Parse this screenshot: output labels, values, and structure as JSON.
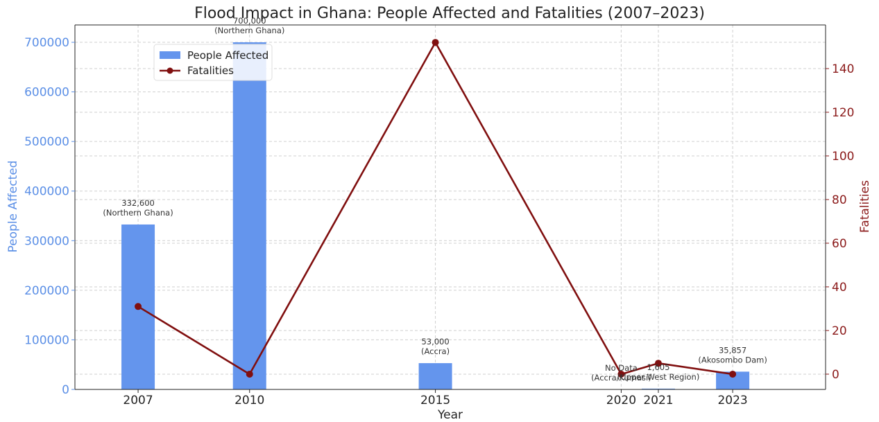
{
  "chart_data": {
    "type": "bar+line",
    "title": "Flood Impact in Ghana: People Affected and Fatalities (2007–2023)",
    "xlabel": "Year",
    "x_range": [
      2005.3,
      2025.5
    ],
    "categories": [
      "2007",
      "2010",
      "2015",
      "2020",
      "2021",
      "2023"
    ],
    "x": [
      2007,
      2010,
      2015,
      2020,
      2021,
      2023
    ],
    "left_axis": {
      "label": "People Affected",
      "color": "#5b8fe6",
      "ylim": [
        0,
        735000
      ],
      "ticks": [
        0,
        100000,
        200000,
        300000,
        400000,
        500000,
        600000,
        700000
      ]
    },
    "right_axis": {
      "label": "Fatalities",
      "color": "#8b1a1a",
      "ylim": [
        -7,
        160
      ],
      "ticks": [
        0,
        20,
        40,
        60,
        80,
        100,
        120,
        140
      ]
    },
    "series": [
      {
        "name": "People Affected",
        "type": "bar",
        "axis": "left",
        "color": "#6495ed",
        "values": [
          332600,
          700000,
          53000,
          0,
          1605,
          35857
        ]
      },
      {
        "name": "Fatalities",
        "type": "line",
        "axis": "right",
        "color": "#800f0f",
        "values": [
          31,
          0,
          152,
          0,
          5,
          0
        ]
      }
    ],
    "bar_annotations": [
      {
        "line1": "332,600",
        "line2": "(Northern Ghana)"
      },
      {
        "line1": "700,000",
        "line2": "(Northern Ghana)"
      },
      {
        "line1": "53,000",
        "line2": "(Accra)"
      },
      {
        "line1": "No Data",
        "line2": "(Accra/Kumasi)"
      },
      {
        "line1": "1,605",
        "line2": "(Upper West Region)"
      },
      {
        "line1": "35,857",
        "line2": "(Akosombo Dam)"
      }
    ],
    "legend": {
      "position": "upper-left",
      "entries": [
        "People Affected",
        "Fatalities"
      ]
    },
    "grid": true
  }
}
